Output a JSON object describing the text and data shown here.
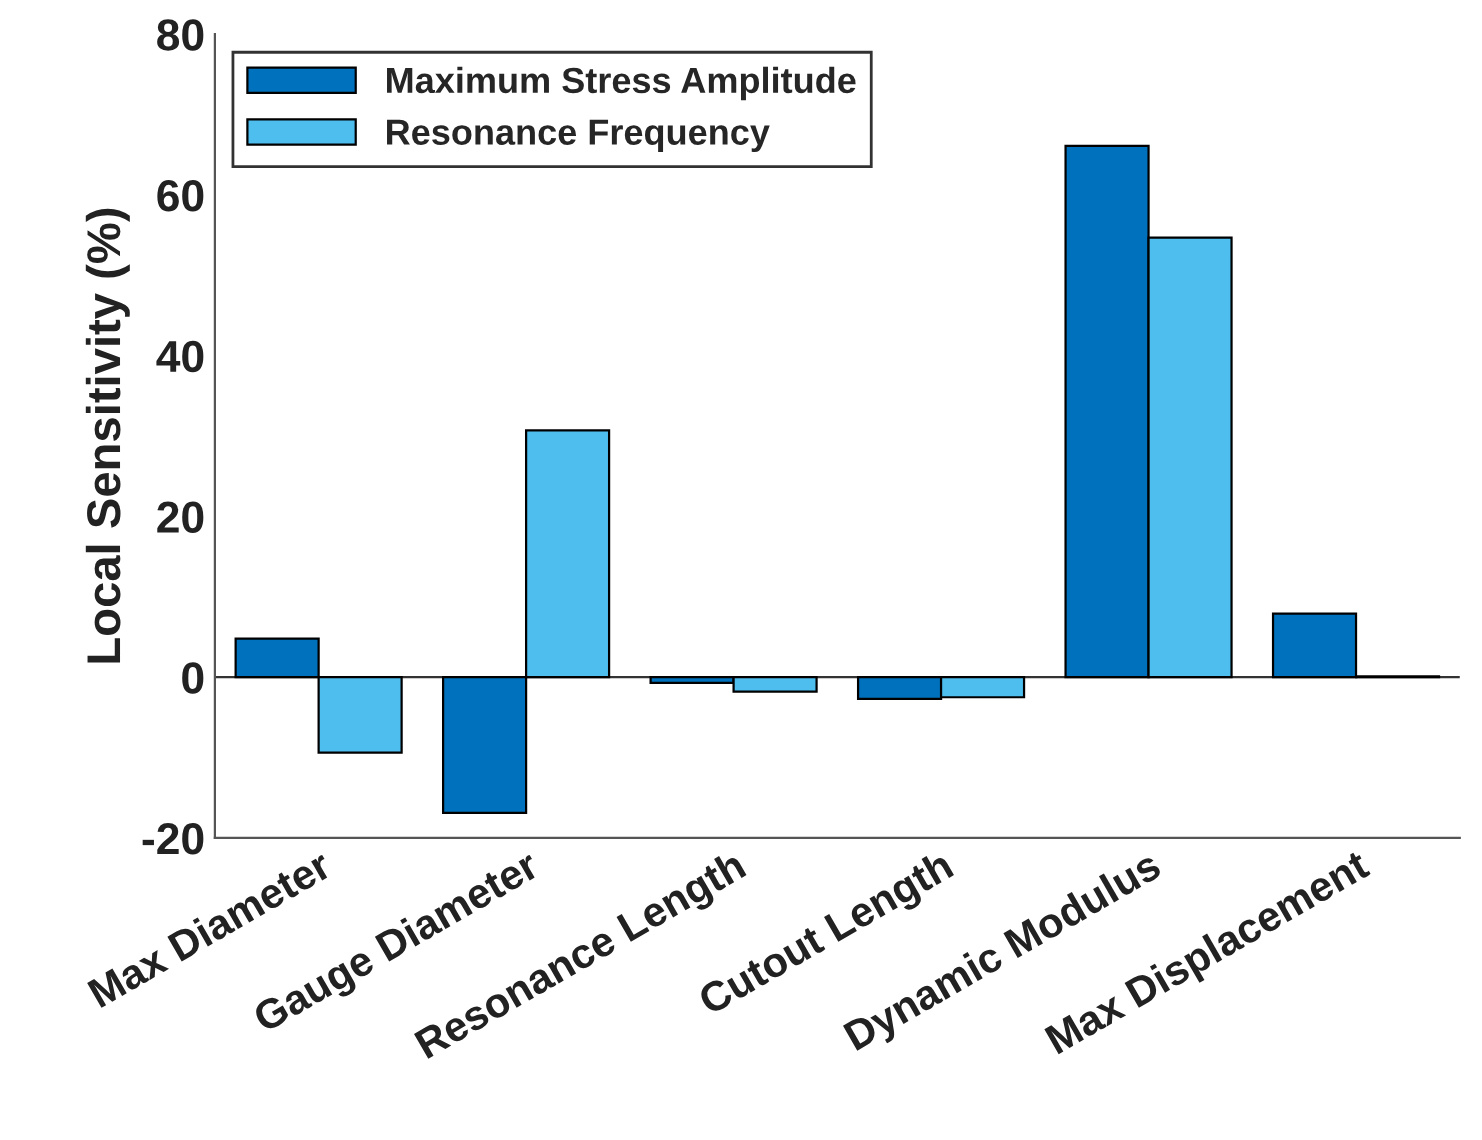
{
  "chart_data": {
    "type": "bar",
    "ylabel": "Local Sensitivity (%)",
    "categories": [
      "Max Diameter",
      "Gauge Diameter",
      "Resonance Length",
      "Cutout Length",
      "Dynamic Modulus",
      "Max Displacement"
    ],
    "series": [
      {
        "name": "Maximum Stress Amplitude",
        "color": "#0072bd",
        "values": [
          4.8,
          -16.9,
          -0.7,
          -2.7,
          66.1,
          7.9
        ]
      },
      {
        "name": "Resonance Frequency",
        "color": "#4dbeee",
        "values": [
          -9.4,
          30.7,
          -1.8,
          -2.5,
          54.7,
          0.1
        ]
      }
    ],
    "ylim": [
      -20,
      80
    ],
    "yticks": [
      -20,
      0,
      20,
      40,
      60,
      80
    ],
    "legend": "top left"
  }
}
